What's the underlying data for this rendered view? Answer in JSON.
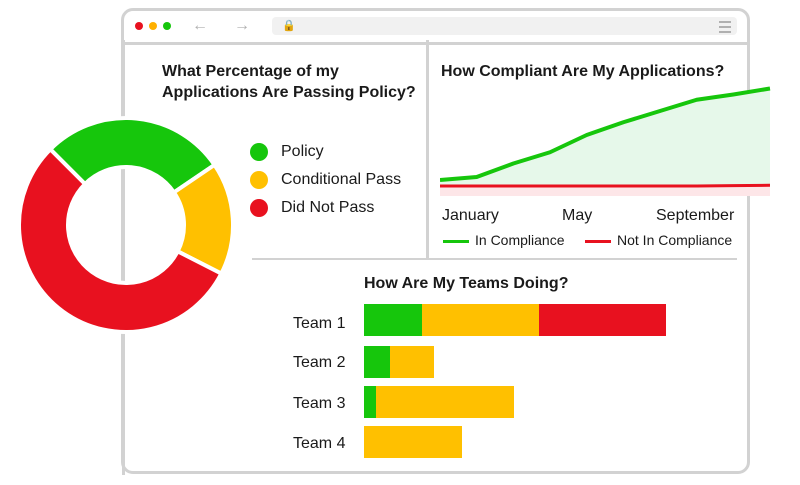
{
  "colors": {
    "green": "#16c60c",
    "yellow": "#ffc000",
    "red": "#e8111f",
    "green_fill": "#e6f8ea",
    "border": "#d2d2d2"
  },
  "icons": {
    "back": "arrow-left-icon",
    "forward": "arrow-right-icon",
    "lock": "lock-icon",
    "menu": "hamburger-menu-icon"
  },
  "browser": {
    "back_glyph": "←",
    "forward_glyph": "→",
    "lock_glyph": "🔒"
  },
  "donut": {
    "title_line1": "What Percentage of my",
    "title_line2": "Applications Are Passing Policy?",
    "legend": [
      "Policy",
      "Conditional Pass",
      "Did Not Pass"
    ]
  },
  "line": {
    "title": "How Compliant Are My Applications?",
    "ticks": [
      "January",
      "May",
      "September"
    ],
    "legend": [
      "In Compliance",
      "Not In Compliance"
    ]
  },
  "bars": {
    "title": "How Are My Teams Doing?",
    "teams": [
      "Team 1",
      "Team 2",
      "Team 3",
      "Team 4"
    ]
  },
  "chart_data": [
    {
      "type": "pie",
      "title": "What Percentage of my Applications Are Passing Policy?",
      "labels": [
        "Policy",
        "Conditional Pass",
        "Did Not Pass"
      ],
      "values": [
        28,
        17,
        55
      ],
      "donut": true
    },
    {
      "type": "area",
      "title": "How Compliant Are My Applications?",
      "x": [
        "January",
        "",
        "",
        "May",
        "",
        "",
        "",
        "September",
        "",
        ""
      ],
      "series": [
        {
          "name": "In Compliance",
          "values": [
            8,
            12,
            30,
            45,
            68,
            85,
            100,
            115,
            122,
            130
          ]
        },
        {
          "name": "Not In Compliance",
          "values": [
            0,
            0,
            0,
            0,
            0,
            0,
            0,
            0,
            0.5,
            1
          ]
        }
      ],
      "ylim": [
        0,
        150
      ],
      "legend_position": "bottom"
    },
    {
      "type": "bar",
      "orientation": "horizontal",
      "stacked": true,
      "title": "How Are My Teams Doing?",
      "categories": [
        "Team 1",
        "Team 2",
        "Team 3",
        "Team 4"
      ],
      "series": [
        {
          "name": "Policy",
          "values": [
            58,
            26,
            12,
            0
          ]
        },
        {
          "name": "Conditional Pass",
          "values": [
            117,
            44,
            138,
            98
          ]
        },
        {
          "name": "Did Not Pass",
          "values": [
            127,
            0,
            0,
            0
          ]
        }
      ],
      "xlim": [
        0,
        302
      ]
    }
  ]
}
